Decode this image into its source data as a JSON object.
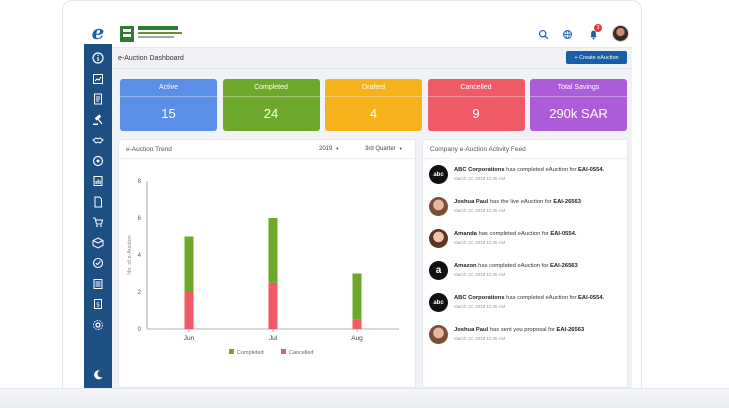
{
  "app": {
    "brand_letter": "e",
    "title": "e-Auction Dashboard",
    "create_button": "+ Create eAuction",
    "notification_count": "3"
  },
  "stats": [
    {
      "label": "Active",
      "value": "15",
      "color": "#5b8ee6"
    },
    {
      "label": "Completed",
      "value": "24",
      "color": "#6ea82a"
    },
    {
      "label": "Drafted",
      "value": "4",
      "color": "#f6b21b"
    },
    {
      "label": "Cancelled",
      "value": "9",
      "color": "#ef5a66"
    },
    {
      "label": "Total Savings",
      "value": "290k SAR",
      "color": "#ac5cd8"
    }
  ],
  "trend": {
    "title": "e-Auction Trend",
    "year": "2019",
    "quarter": "3rd Quarter"
  },
  "chart_data": {
    "type": "bar",
    "stacked": true,
    "categories": [
      "Jun",
      "Jul",
      "Aug"
    ],
    "series": [
      {
        "name": "Completed",
        "values": [
          3,
          3.5,
          2.5
        ],
        "color": "#6ea82a"
      },
      {
        "name": "Cancelled",
        "values": [
          2,
          2.5,
          0.5
        ],
        "color": "#ef5a66"
      }
    ],
    "ylabel": "No. of e-Auction",
    "ylim": [
      0,
      8
    ],
    "yticks": [
      "0",
      "2",
      "4",
      "6",
      "8"
    ],
    "legend": "bottom",
    "grid": false
  },
  "feed": {
    "title": "Company e-Auction Activity Feed",
    "items": [
      {
        "avatar": "abc",
        "actor": "ABC Corporations",
        "text": " has completed eAuction for ",
        "ref": "EAI-0554.",
        "time": "March 12, 2018   11:45 AM"
      },
      {
        "avatar": "face",
        "actor": "Joshua Paul",
        "text": " has the live eAuction for ",
        "ref": "EAI-26563",
        "time": "March 12, 2018   11:45 AM"
      },
      {
        "avatar": "face2",
        "actor": "Amanda",
        "text": " has completed eAuction for ",
        "ref": "EAI-0554.",
        "time": "March 12, 2018   11:45 AM"
      },
      {
        "avatar": "amazon",
        "actor": "Amazon",
        "text": " has completed eAuction for ",
        "ref": "EAI-26563",
        "time": "March 12, 2018   11:45 AM"
      },
      {
        "avatar": "abc",
        "actor": "ABC Corporations",
        "text": " has completed eAuction for ",
        "ref": "EAI-0554.",
        "time": "March 12, 2018   11:45 AM"
      },
      {
        "avatar": "face",
        "actor": "Joshua Paul",
        "text": " has sent you proposal for ",
        "ref": "EAI-26563",
        "time": "March 12, 2018   11:45 AM"
      }
    ]
  },
  "sidebar_icons": [
    "info-icon",
    "chart-icon",
    "document-icon",
    "auction-icon",
    "handshake-icon",
    "settings-wheel-icon",
    "report-icon",
    "file-icon",
    "cart-icon",
    "box-icon",
    "check-circle-icon",
    "list-icon",
    "invoice-icon",
    "gear-icon",
    "moon-icon"
  ]
}
